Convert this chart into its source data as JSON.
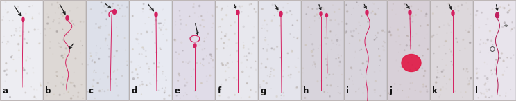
{
  "figsize": [
    7.44,
    1.46
  ],
  "dpi": 100,
  "num_panels": 12,
  "labels": [
    "a",
    "b",
    "c",
    "d",
    "e",
    "f",
    "g",
    "h",
    "i",
    "j",
    "k",
    "l"
  ],
  "bg_color": "#c8c0c0",
  "panel_bg_light": "#f0ece8",
  "panel_bg_mid": "#e8e0dc",
  "sperm_color": "#d42060",
  "sperm_color2": "#c01850",
  "arrow_color": "#1a1a1a",
  "arrow_gray": "#888888",
  "label_fontsize": 8.5,
  "lw_sperm": 0.7,
  "lw_arrow": 0.8
}
